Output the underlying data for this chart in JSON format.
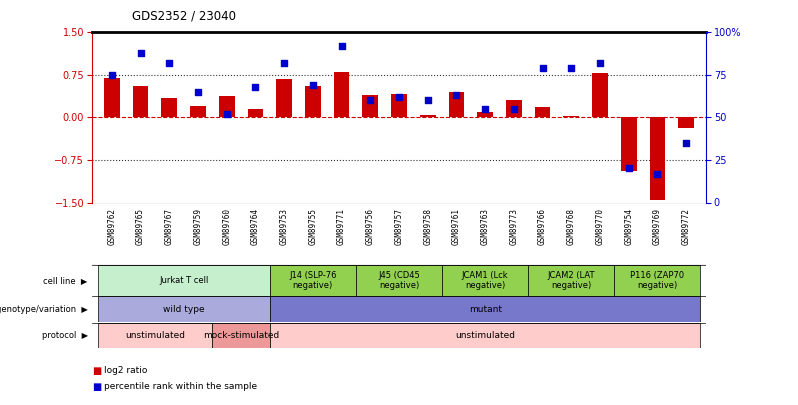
{
  "title": "GDS2352 / 23040",
  "samples": [
    "GSM89762",
    "GSM89765",
    "GSM89767",
    "GSM89759",
    "GSM89760",
    "GSM89764",
    "GSM89753",
    "GSM89755",
    "GSM89771",
    "GSM89756",
    "GSM89757",
    "GSM89758",
    "GSM89761",
    "GSM89763",
    "GSM89773",
    "GSM89766",
    "GSM89768",
    "GSM89770",
    "GSM89754",
    "GSM89769",
    "GSM89772"
  ],
  "log2_ratio": [
    0.7,
    0.55,
    0.35,
    0.2,
    0.38,
    0.15,
    0.68,
    0.55,
    0.8,
    0.4,
    0.42,
    0.05,
    0.45,
    0.1,
    0.3,
    0.18,
    0.02,
    0.78,
    -0.95,
    -1.45,
    -0.18
  ],
  "percentile": [
    75,
    88,
    82,
    65,
    52,
    68,
    82,
    69,
    92,
    60,
    62,
    60,
    63,
    55,
    55,
    79,
    79,
    82,
    20,
    17,
    35
  ],
  "bar_color": "#cc0000",
  "dot_color": "#0000cc",
  "ylim_left": [
    -1.5,
    1.5
  ],
  "yticks_left": [
    -1.5,
    -0.75,
    0,
    0.75,
    1.5
  ],
  "ylim_right": [
    0,
    100
  ],
  "yticks_right": [
    0,
    25,
    50,
    75,
    100
  ],
  "hlines_dotted": [
    -0.75,
    0.75
  ],
  "bar_width": 0.55,
  "cell_lines": [
    {
      "label": "Jurkat T cell",
      "start": 0,
      "end": 6,
      "color": "#c6efce"
    },
    {
      "label": "J14 (SLP-76\nnegative)",
      "start": 6,
      "end": 9,
      "color": "#92d050"
    },
    {
      "label": "J45 (CD45\nnegative)",
      "start": 9,
      "end": 12,
      "color": "#92d050"
    },
    {
      "label": "JCAM1 (Lck\nnegative)",
      "start": 12,
      "end": 15,
      "color": "#92d050"
    },
    {
      "label": "JCAM2 (LAT\nnegative)",
      "start": 15,
      "end": 18,
      "color": "#92d050"
    },
    {
      "label": "P116 (ZAP70\nnegative)",
      "start": 18,
      "end": 21,
      "color": "#92d050"
    }
  ],
  "genotype_rows": [
    {
      "label": "wild type",
      "start": 0,
      "end": 6,
      "color": "#aaaadd"
    },
    {
      "label": "mutant",
      "start": 6,
      "end": 21,
      "color": "#7777cc"
    }
  ],
  "protocol_rows": [
    {
      "label": "unstimulated",
      "start": 0,
      "end": 4,
      "color": "#ffcccc"
    },
    {
      "label": "mock-stimulated",
      "start": 4,
      "end": 6,
      "color": "#ee9999"
    },
    {
      "label": "unstimulated",
      "start": 6,
      "end": 21,
      "color": "#ffcccc"
    }
  ],
  "legend_bar_label": "log2 ratio",
  "legend_dot_label": "percentile rank within the sample",
  "xtick_bg": "#dddddd"
}
